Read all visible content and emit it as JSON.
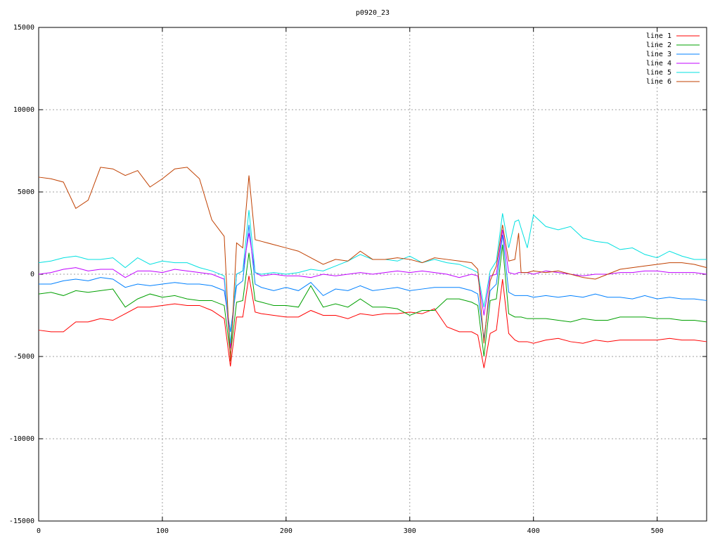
{
  "chart_data": {
    "type": "line",
    "title": "p0920_23",
    "x": [
      0,
      10,
      20,
      30,
      40,
      50,
      60,
      70,
      80,
      90,
      100,
      110,
      120,
      130,
      140,
      150,
      155,
      160,
      165,
      170,
      175,
      180,
      190,
      200,
      210,
      220,
      230,
      240,
      250,
      260,
      270,
      280,
      290,
      300,
      310,
      320,
      330,
      340,
      350,
      355,
      360,
      365,
      370,
      375,
      380,
      385,
      388,
      390,
      395,
      400,
      410,
      420,
      430,
      440,
      450,
      460,
      470,
      480,
      490,
      500,
      510,
      520,
      530,
      540
    ],
    "series": [
      {
        "name": "line 1",
        "color": "#ff0000",
        "values": [
          -3400,
          -3500,
          -3500,
          -2900,
          -2900,
          -2700,
          -2800,
          -2400,
          -2000,
          -2000,
          -1900,
          -1800,
          -1900,
          -1900,
          -2200,
          -2700,
          -5600,
          -2600,
          -2600,
          -100,
          -2300,
          -2400,
          -2500,
          -2600,
          -2600,
          -2200,
          -2500,
          -2500,
          -2700,
          -2400,
          -2500,
          -2400,
          -2400,
          -2300,
          -2400,
          -2100,
          -3200,
          -3500,
          -3500,
          -3700,
          -5700,
          -3600,
          -3400,
          -300,
          -3600,
          -4000,
          -4100,
          -4100,
          -4100,
          -4200,
          -4000,
          -3900,
          -4100,
          -4200,
          -4000,
          -4100,
          -4000,
          -4000,
          -4000,
          -4000,
          -3900,
          -4000,
          -4000,
          -4100
        ]
      },
      {
        "name": "line 2",
        "color": "#00a000",
        "values": [
          -1200,
          -1100,
          -1300,
          -1000,
          -1100,
          -1000,
          -900,
          -2000,
          -1500,
          -1200,
          -1400,
          -1300,
          -1500,
          -1600,
          -1600,
          -1900,
          -4900,
          -1700,
          -1600,
          1300,
          -1600,
          -1700,
          -1900,
          -1900,
          -2000,
          -700,
          -2000,
          -1800,
          -2000,
          -1500,
          -2000,
          -2000,
          -2100,
          -2500,
          -2200,
          -2200,
          -1500,
          -1500,
          -1700,
          -1900,
          -5000,
          -1600,
          -1500,
          1800,
          -2400,
          -2600,
          -2600,
          -2600,
          -2700,
          -2700,
          -2700,
          -2800,
          -2900,
          -2700,
          -2800,
          -2800,
          -2600,
          -2600,
          -2600,
          -2700,
          -2700,
          -2800,
          -2800,
          -2900
        ]
      },
      {
        "name": "line 3",
        "color": "#0080ff",
        "values": [
          -600,
          -600,
          -400,
          -300,
          -400,
          -200,
          -300,
          -800,
          -600,
          -700,
          -600,
          -500,
          -600,
          -600,
          -700,
          -1000,
          -3500,
          -700,
          -400,
          3000,
          -600,
          -800,
          -1000,
          -800,
          -1000,
          -500,
          -1300,
          -900,
          -1000,
          -700,
          -1000,
          -900,
          -800,
          -1000,
          -900,
          -800,
          -800,
          -800,
          -1000,
          -1200,
          -3900,
          -1000,
          -600,
          2400,
          -1100,
          -1300,
          -1300,
          -1300,
          -1300,
          -1400,
          -1300,
          -1400,
          -1300,
          -1400,
          -1200,
          -1400,
          -1400,
          -1500,
          -1300,
          -1500,
          -1400,
          -1500,
          -1500,
          -1600
        ]
      },
      {
        "name": "line 4",
        "color": "#c000ff",
        "values": [
          0,
          100,
          300,
          400,
          200,
          300,
          300,
          -200,
          200,
          200,
          100,
          300,
          200,
          100,
          0,
          -300,
          -4500,
          0,
          200,
          2500,
          100,
          -100,
          0,
          -100,
          -100,
          -200,
          0,
          -100,
          0,
          100,
          0,
          100,
          200,
          100,
          200,
          100,
          0,
          -200,
          0,
          -100,
          -2500,
          -100,
          0,
          2700,
          100,
          0,
          100,
          100,
          100,
          0,
          200,
          100,
          0,
          -100,
          0,
          0,
          100,
          100,
          200,
          200,
          100,
          100,
          100,
          0
        ]
      },
      {
        "name": "line 5",
        "color": "#00e0e0",
        "values": [
          700,
          800,
          1000,
          1100,
          900,
          900,
          1000,
          400,
          1000,
          600,
          800,
          700,
          700,
          400,
          200,
          -100,
          -4200,
          0,
          200,
          3900,
          100,
          0,
          100,
          0,
          100,
          300,
          200,
          500,
          800,
          1200,
          900,
          900,
          800,
          1100,
          700,
          900,
          700,
          600,
          300,
          100,
          -2000,
          200,
          800,
          3700,
          1600,
          3200,
          3300,
          2800,
          1600,
          3600,
          2900,
          2700,
          2900,
          2200,
          2000,
          1900,
          1500,
          1600,
          1200,
          1000,
          1400,
          1100,
          900,
          900
        ]
      },
      {
        "name": "line 6",
        "color": "#c04000",
        "values": [
          5900,
          5800,
          5600,
          4000,
          4500,
          6500,
          6400,
          6000,
          6300,
          5300,
          5800,
          6400,
          6500,
          5800,
          3300,
          2300,
          -5300,
          1900,
          1600,
          6000,
          2100,
          2000,
          1800,
          1600,
          1400,
          1000,
          600,
          900,
          800,
          1400,
          900,
          900,
          1000,
          900,
          700,
          1000,
          900,
          800,
          700,
          300,
          -4200,
          -400,
          500,
          3000,
          800,
          900,
          2500,
          100,
          100,
          200,
          100,
          200,
          0,
          -200,
          -300,
          0,
          300,
          400,
          500,
          600,
          700,
          700,
          600,
          400
        ]
      }
    ],
    "xlim": [
      0,
      540
    ],
    "xticks": [
      0,
      100,
      200,
      300,
      400,
      500
    ],
    "ylim": [
      -15000,
      15000
    ],
    "yticks": [
      -15000,
      -10000,
      -5000,
      0,
      5000,
      10000,
      15000
    ],
    "grid": true,
    "legend": "top-right"
  }
}
